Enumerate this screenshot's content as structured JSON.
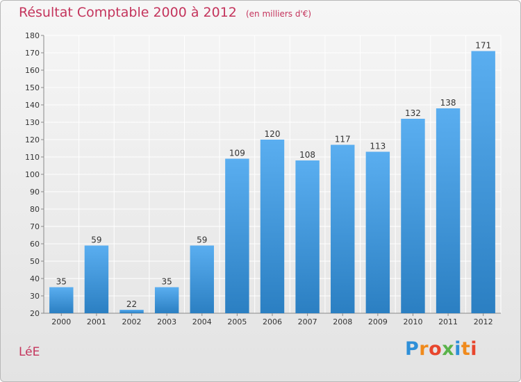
{
  "chart_data": {
    "type": "bar",
    "title": "Résultat Comptable 2000 à 2012",
    "subtitle": "(en milliers d'€)",
    "categories": [
      "2000",
      "2001",
      "2002",
      "2003",
      "2004",
      "2005",
      "2006",
      "2007",
      "2008",
      "2009",
      "2010",
      "2011",
      "2012"
    ],
    "values": [
      35,
      59,
      22,
      35,
      59,
      109,
      120,
      108,
      117,
      113,
      132,
      138,
      171
    ],
    "ylim": [
      20,
      180
    ],
    "yticks": [
      20,
      30,
      40,
      50,
      60,
      70,
      80,
      90,
      100,
      110,
      120,
      130,
      140,
      150,
      160,
      170,
      180
    ],
    "grid": true,
    "xlabel": "",
    "ylabel": ""
  },
  "commune": "LéE",
  "logo": {
    "letters": [
      "P",
      "r",
      "o",
      "x",
      "i",
      "t",
      "i"
    ],
    "colors": [
      "#2e8fd8",
      "#f08a1c",
      "#e8462d",
      "#5ab34a",
      "#2e8fd8",
      "#f08a1c",
      "#e8462d"
    ]
  },
  "colors": {
    "title": "#c4345c",
    "bar_top": "#5aaef0",
    "bar_bottom": "#2b7fc2",
    "grid": "#ffffff",
    "axis": "#888888"
  }
}
